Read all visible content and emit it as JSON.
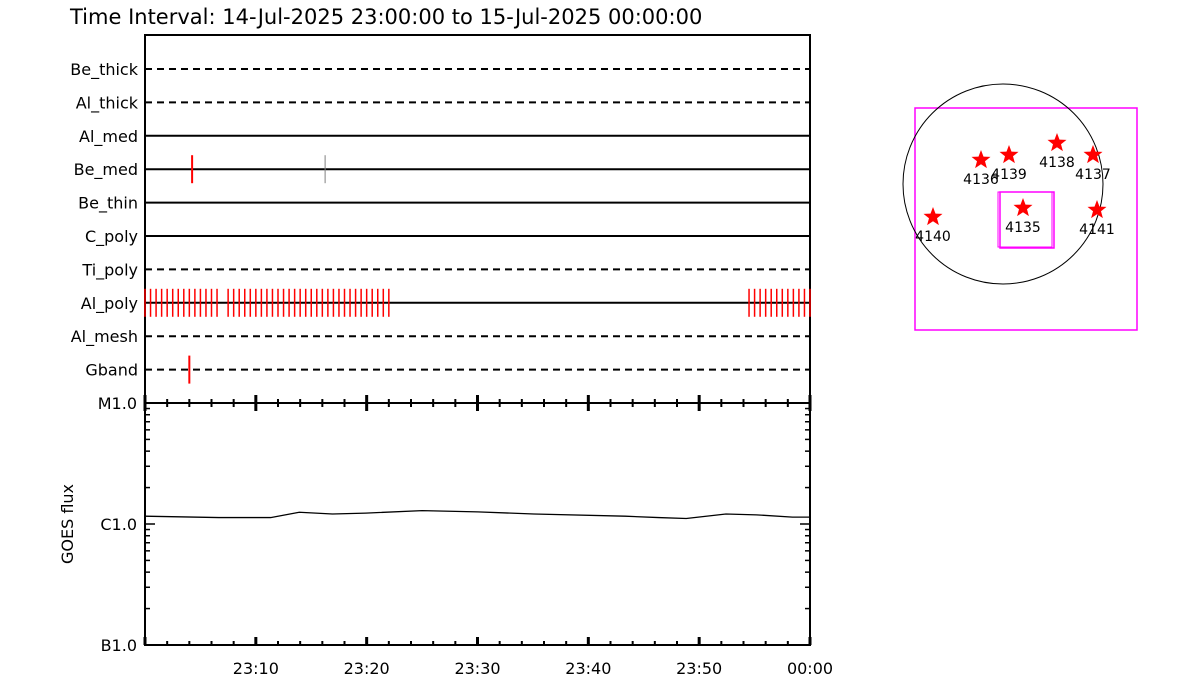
{
  "title": "Time Interval: 14-Jul-2025 23:00:00 to 15-Jul-2025 00:00:00",
  "chart_data": [
    {
      "type": "timeline",
      "x_range": [
        "23:00:00",
        "00:00:00"
      ],
      "x_tick_labels": [
        "23:10",
        "23:20",
        "23:30",
        "23:40",
        "23:50",
        "00:00"
      ],
      "filters": [
        {
          "name": "Be_thick",
          "line": "dashed",
          "obs": []
        },
        {
          "name": "Al_thick",
          "line": "dashed",
          "obs": []
        },
        {
          "name": "Al_med",
          "line": "solid",
          "obs": []
        },
        {
          "name": "Be_med",
          "line": "solid",
          "obs": [
            {
              "t": "23:04:15",
              "color": "#ff0000"
            },
            {
              "t": "23:16:15",
              "color": "#808080"
            }
          ]
        },
        {
          "name": "Be_thin",
          "line": "solid",
          "obs": []
        },
        {
          "name": "C_poly",
          "line": "solid",
          "obs": []
        },
        {
          "name": "Ti_poly",
          "line": "dashed",
          "obs": []
        },
        {
          "name": "Al_poly",
          "line": "solid",
          "color": "#ff0000",
          "obs_times": [
            "23:00:00",
            "23:00:30",
            "23:01:00",
            "23:01:30",
            "23:02:00",
            "23:02:30",
            "23:03:00",
            "23:03:30",
            "23:04:00",
            "23:04:30",
            "23:05:00",
            "23:05:30",
            "23:06:00",
            "23:06:30",
            "23:07:30",
            "23:08:00",
            "23:08:30",
            "23:09:00",
            "23:09:30",
            "23:10:00",
            "23:10:30",
            "23:11:00",
            "23:11:30",
            "23:12:00",
            "23:12:30",
            "23:13:00",
            "23:13:30",
            "23:14:00",
            "23:14:30",
            "23:15:00",
            "23:15:30",
            "23:16:00",
            "23:16:30",
            "23:17:00",
            "23:17:30",
            "23:18:00",
            "23:18:30",
            "23:19:00",
            "23:19:30",
            "23:20:00",
            "23:20:30",
            "23:21:00",
            "23:21:30",
            "23:22:00",
            "23:54:30",
            "23:55:00",
            "23:55:30",
            "23:56:00",
            "23:56:30",
            "23:57:00",
            "23:57:30",
            "23:58:00",
            "23:58:30",
            "23:59:00",
            "23:59:30",
            "24:00:00"
          ]
        },
        {
          "name": "Al_mesh",
          "line": "dashed",
          "obs": []
        },
        {
          "name": "Gband",
          "line": "dashed",
          "obs": [
            {
              "t": "23:04:00",
              "color": "#ff0000"
            }
          ]
        }
      ]
    },
    {
      "type": "line",
      "ylabel": "GOES flux",
      "y_scale": "log",
      "ylim": [
        1e-07,
        1e-05
      ],
      "y_tick_labels": [
        {
          "label": "B1.0",
          "value": 1e-07
        },
        {
          "label": "C1.0",
          "value": 1e-06
        },
        {
          "label": "M1.0",
          "value": 1e-05
        }
      ],
      "x": [
        "23:00",
        "23:06:40",
        "23:11:20",
        "23:13:55",
        "23:16:55",
        "23:19:55",
        "23:25:00",
        "23:30:00",
        "23:35:05",
        "23:43:20",
        "23:46:20",
        "23:48:50",
        "23:52:25",
        "23:55:10",
        "23:58:25",
        "00:00"
      ],
      "y": [
        1.16e-06,
        1.13e-06,
        1.13e-06,
        1.25e-06,
        1.21e-06,
        1.23e-06,
        1.29e-06,
        1.26e-06,
        1.21e-06,
        1.16e-06,
        1.13e-06,
        1.11e-06,
        1.21e-06,
        1.19e-06,
        1.14e-06,
        1.14e-06
      ]
    },
    {
      "type": "scatter",
      "markers": [
        {
          "label": "4136"
        },
        {
          "label": "4139"
        },
        {
          "label": "4138"
        },
        {
          "label": "4137"
        },
        {
          "label": "4140"
        },
        {
          "label": "4135"
        },
        {
          "label": "4141"
        }
      ],
      "marker_color": "#ff0000",
      "box_color": "#ff00ff"
    }
  ]
}
